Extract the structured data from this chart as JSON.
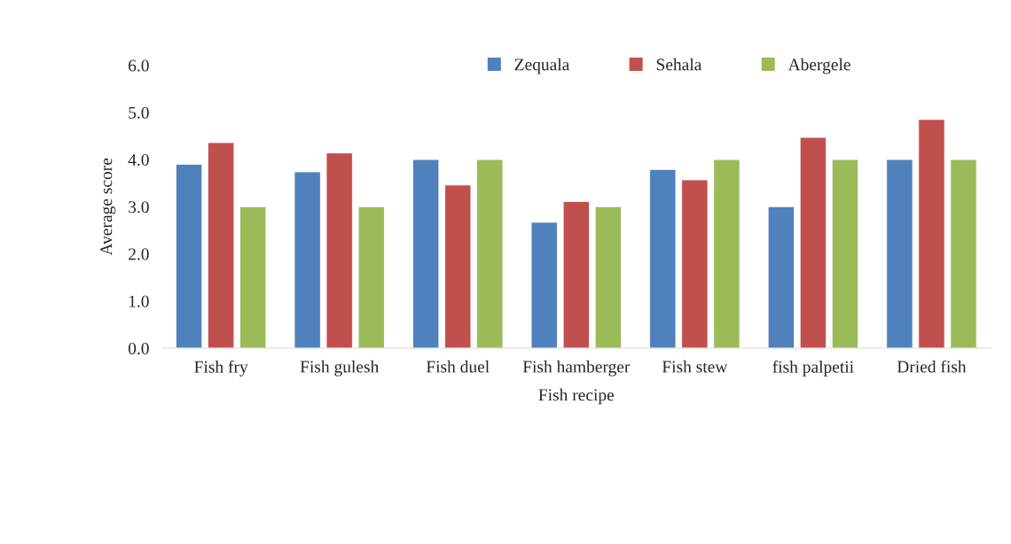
{
  "chart_data": {
    "type": "bar",
    "xlabel": "Fish recipe",
    "ylabel": "Average score",
    "categories": [
      "Fish fry",
      "Fish gulesh",
      "Fish duel",
      "Fish hamberger",
      "Fish stew",
      "fish palpetii",
      "Dried fish"
    ],
    "series": [
      {
        "name": "Zequala",
        "color": "#4f81bd",
        "values": [
          3.9,
          3.74,
          4.0,
          2.67,
          3.79,
          3.0,
          4.0
        ]
      },
      {
        "name": "Sehala",
        "color": "#c0504d",
        "values": [
          4.36,
          4.14,
          3.46,
          3.11,
          3.57,
          4.47,
          4.85
        ]
      },
      {
        "name": "Abergele",
        "color": "#9bbb59",
        "values": [
          3.0,
          3.0,
          4.0,
          3.0,
          4.0,
          4.0,
          4.0
        ]
      }
    ],
    "ylim": [
      0,
      6
    ],
    "yticks": [
      {
        "value": 0,
        "label": "0.0"
      },
      {
        "value": 1,
        "label": "1.0"
      },
      {
        "value": 2,
        "label": "2.0"
      },
      {
        "value": 3,
        "label": "3.0"
      },
      {
        "value": 4,
        "label": "4.0"
      },
      {
        "value": 5,
        "label": "5.0"
      },
      {
        "value": 6,
        "label": "6.0"
      }
    ],
    "grid": false,
    "legend": "top right"
  }
}
